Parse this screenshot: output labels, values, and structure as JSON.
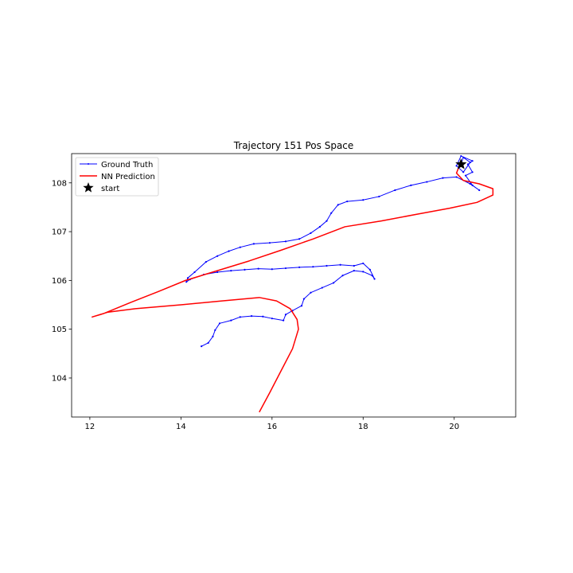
{
  "chart_data": {
    "type": "line",
    "title": "Trajectory 151 Pos Space",
    "xlabel": "",
    "ylabel": "",
    "xlim": [
      11.6,
      21.35
    ],
    "ylim": [
      103.2,
      108.6
    ],
    "xticks": [
      12,
      14,
      16,
      18,
      20
    ],
    "yticks": [
      104,
      105,
      106,
      107,
      108
    ],
    "x_tick_labels": [
      "12",
      "14",
      "16",
      "18",
      "20"
    ],
    "y_tick_labels": [
      "104",
      "105",
      "106",
      "107",
      "108"
    ],
    "grid": false,
    "legend": {
      "placement": "top-left",
      "entries": [
        "Ground Truth",
        "NN Prediction",
        "start"
      ]
    },
    "series": [
      {
        "name": "Ground Truth",
        "color": "#0000ff",
        "marker": "dot",
        "points": [
          [
            14.45,
            104.65
          ],
          [
            14.6,
            104.72
          ],
          [
            14.7,
            104.85
          ],
          [
            14.75,
            104.98
          ],
          [
            14.85,
            105.12
          ],
          [
            15.1,
            105.18
          ],
          [
            15.3,
            105.25
          ],
          [
            15.55,
            105.27
          ],
          [
            15.8,
            105.26
          ],
          [
            16.0,
            105.22
          ],
          [
            16.25,
            105.18
          ],
          [
            16.3,
            105.3
          ],
          [
            16.45,
            105.38
          ],
          [
            16.65,
            105.48
          ],
          [
            16.7,
            105.62
          ],
          [
            16.85,
            105.75
          ],
          [
            17.1,
            105.85
          ],
          [
            17.35,
            105.95
          ],
          [
            17.55,
            106.1
          ],
          [
            17.8,
            106.2
          ],
          [
            18.0,
            106.18
          ],
          [
            18.2,
            106.1
          ],
          [
            18.25,
            106.03
          ],
          [
            18.15,
            106.22
          ],
          [
            18.0,
            106.35
          ],
          [
            17.8,
            106.3
          ],
          [
            17.5,
            106.32
          ],
          [
            17.2,
            106.3
          ],
          [
            16.9,
            106.28
          ],
          [
            16.6,
            106.27
          ],
          [
            16.3,
            106.25
          ],
          [
            16.0,
            106.23
          ],
          [
            15.7,
            106.24
          ],
          [
            15.4,
            106.22
          ],
          [
            15.1,
            106.2
          ],
          [
            14.8,
            106.17
          ],
          [
            14.5,
            106.12
          ],
          [
            14.2,
            106.02
          ],
          [
            14.12,
            105.97
          ],
          [
            14.15,
            106.05
          ],
          [
            14.3,
            106.17
          ],
          [
            14.55,
            106.38
          ],
          [
            14.8,
            106.5
          ],
          [
            15.05,
            106.6
          ],
          [
            15.3,
            106.68
          ],
          [
            15.6,
            106.75
          ],
          [
            15.95,
            106.77
          ],
          [
            16.3,
            106.8
          ],
          [
            16.6,
            106.85
          ],
          [
            16.85,
            106.97
          ],
          [
            17.05,
            107.1
          ],
          [
            17.2,
            107.22
          ],
          [
            17.3,
            107.38
          ],
          [
            17.45,
            107.55
          ],
          [
            17.65,
            107.62
          ],
          [
            18.0,
            107.65
          ],
          [
            18.35,
            107.72
          ],
          [
            18.7,
            107.85
          ],
          [
            19.05,
            107.95
          ],
          [
            19.4,
            108.02
          ],
          [
            19.75,
            108.1
          ],
          [
            20.05,
            108.12
          ],
          [
            20.35,
            107.98
          ],
          [
            20.55,
            107.85
          ],
          [
            20.4,
            107.95
          ],
          [
            20.25,
            108.15
          ],
          [
            20.4,
            108.22
          ],
          [
            20.3,
            108.38
          ],
          [
            20.4,
            108.45
          ],
          [
            20.15,
            108.55
          ],
          [
            20.05,
            108.35
          ],
          [
            20.2,
            108.22
          ],
          [
            20.35,
            108.42
          ],
          [
            20.2,
            108.52
          ],
          [
            20.15,
            108.38
          ]
        ]
      },
      {
        "name": "NN Prediction",
        "color": "#ff0000",
        "marker": "none",
        "points": [
          [
            15.72,
            103.3
          ],
          [
            15.95,
            103.7
          ],
          [
            16.2,
            104.15
          ],
          [
            16.45,
            104.6
          ],
          [
            16.58,
            105.0
          ],
          [
            16.55,
            105.2
          ],
          [
            16.4,
            105.42
          ],
          [
            16.1,
            105.58
          ],
          [
            15.72,
            105.65
          ],
          [
            14.9,
            105.58
          ],
          [
            14.0,
            105.5
          ],
          [
            13.0,
            105.42
          ],
          [
            12.4,
            105.35
          ],
          [
            12.05,
            105.25
          ],
          [
            12.3,
            105.32
          ],
          [
            12.9,
            105.55
          ],
          [
            13.5,
            105.77
          ],
          [
            14.1,
            106.0
          ],
          [
            14.8,
            106.2
          ],
          [
            15.5,
            106.4
          ],
          [
            16.2,
            106.62
          ],
          [
            16.9,
            106.85
          ],
          [
            17.6,
            107.1
          ],
          [
            18.4,
            107.22
          ],
          [
            19.2,
            107.36
          ],
          [
            19.9,
            107.48
          ],
          [
            20.5,
            107.6
          ],
          [
            20.85,
            107.75
          ],
          [
            20.85,
            107.88
          ],
          [
            20.55,
            107.98
          ],
          [
            20.2,
            108.05
          ],
          [
            20.05,
            108.2
          ],
          [
            20.1,
            108.32
          ],
          [
            20.15,
            108.38
          ]
        ]
      },
      {
        "name": "start",
        "color": "#000000",
        "marker": "star",
        "points": [
          [
            20.15,
            108.38
          ]
        ]
      }
    ]
  }
}
